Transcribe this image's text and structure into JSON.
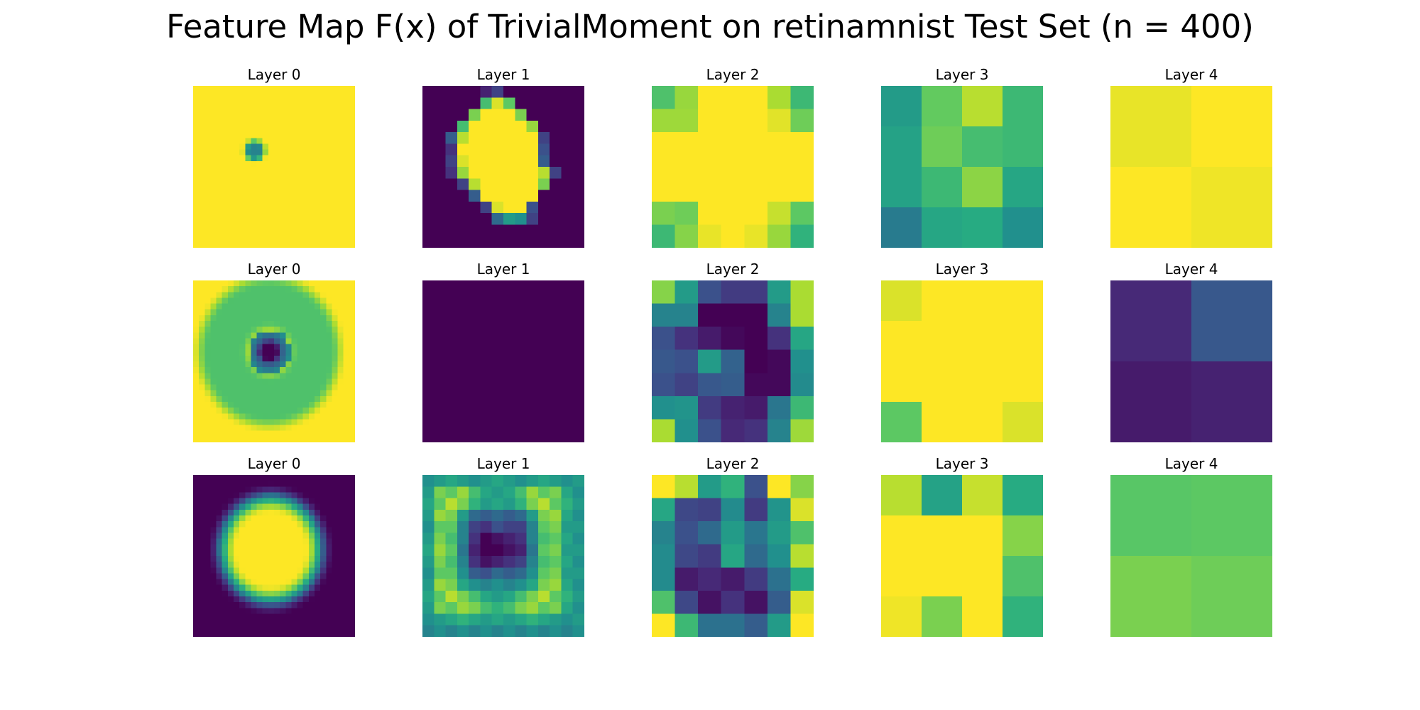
{
  "chart_data": {
    "type": "heatmap",
    "title": "Feature Map F(x) of TrivialMoment on retinamnist Test Set (n = 400)",
    "colormap": "viridis",
    "value_range": [
      0,
      1
    ],
    "rows": [
      {
        "panels": [
          {
            "title": "Layer 0",
            "kind": "spot",
            "size": 28,
            "background": 1.0,
            "center": [
              0.38,
              0.4
            ],
            "radius": 0.085,
            "min": 0.45
          },
          {
            "title": "Layer 1",
            "kind": "grid",
            "size": 14,
            "values": [
              [
                0,
                0,
                0,
                0,
                0,
                0.1,
                0.2,
                0,
                0,
                0,
                0,
                0,
                0,
                0
              ],
              [
                0,
                0,
                0,
                0,
                0,
                0.7,
                0.95,
                0.75,
                0,
                0,
                0,
                0,
                0,
                0
              ],
              [
                0,
                0,
                0,
                0,
                0.8,
                1,
                1,
                1,
                0.8,
                0,
                0,
                0,
                0,
                0
              ],
              [
                0,
                0,
                0,
                0.7,
                1,
                1,
                1,
                1,
                1,
                0.85,
                0,
                0,
                0,
                0
              ],
              [
                0,
                0,
                0.3,
                0.9,
                1,
                1,
                1,
                1,
                1,
                1,
                0.2,
                0,
                0,
                0
              ],
              [
                0,
                0,
                0.15,
                1,
                1,
                1,
                1,
                1,
                1,
                1,
                0.25,
                0,
                0,
                0
              ],
              [
                0,
                0,
                0.2,
                0.95,
                1,
                1,
                1,
                1,
                1,
                1,
                0.3,
                0,
                0,
                0
              ],
              [
                0,
                0,
                0.15,
                0.85,
                1,
                1,
                1,
                1,
                1,
                1,
                0.9,
                0.2,
                0,
                0
              ],
              [
                0,
                0,
                0,
                0.2,
                0.9,
                1,
                1,
                1,
                1,
                1,
                0.8,
                0,
                0,
                0
              ],
              [
                0,
                0,
                0,
                0,
                0.3,
                1,
                1,
                1,
                1,
                1,
                0,
                0,
                0,
                0
              ],
              [
                0,
                0,
                0,
                0,
                0,
                0.2,
                0.95,
                1,
                1,
                0.25,
                0,
                0,
                0,
                0
              ],
              [
                0,
                0,
                0,
                0,
                0,
                0,
                0.35,
                0.55,
                0.5,
                0.2,
                0,
                0,
                0,
                0
              ],
              [
                0,
                0,
                0,
                0,
                0,
                0,
                0,
                0,
                0,
                0,
                0,
                0,
                0,
                0
              ],
              [
                0,
                0,
                0,
                0,
                0,
                0,
                0,
                0,
                0,
                0,
                0,
                0,
                0,
                0
              ]
            ]
          },
          {
            "title": "Layer 2",
            "kind": "grid",
            "size": 7,
            "values": [
              [
                0.72,
                0.85,
                1,
                1,
                1,
                0.88,
                0.68
              ],
              [
                0.86,
                0.86,
                1,
                1,
                1,
                0.96,
                0.78
              ],
              [
                1,
                1,
                1,
                1,
                1,
                1,
                1
              ],
              [
                1,
                1,
                1,
                1,
                1,
                1,
                1
              ],
              [
                1,
                1,
                1,
                1,
                1,
                1,
                1
              ],
              [
                0.8,
                0.78,
                1,
                1,
                1,
                0.92,
                0.75
              ],
              [
                0.68,
                0.82,
                0.97,
                1,
                0.97,
                0.85,
                0.65
              ]
            ]
          },
          {
            "title": "Layer 3",
            "kind": "grid",
            "size": 4,
            "values": [
              [
                0.55,
                0.76,
                0.9,
                0.68
              ],
              [
                0.58,
                0.78,
                0.7,
                0.68
              ],
              [
                0.58,
                0.68,
                0.83,
                0.6
              ],
              [
                0.42,
                0.6,
                0.62,
                0.5
              ]
            ]
          },
          {
            "title": "Layer 4",
            "kind": "grid",
            "size": 2,
            "values": [
              [
                0.97,
                1.0
              ],
              [
                1.0,
                0.98
              ]
            ]
          }
        ]
      },
      {
        "panels": [
          {
            "title": "Layer 0",
            "kind": "ring",
            "size": 28,
            "background": 1.0,
            "center": [
              0.47,
              0.44
            ],
            "ring_radius": 0.28,
            "ring_width": 0.2,
            "ring_value": 0.72,
            "core_radius": 0.13
          },
          {
            "title": "Layer 1",
            "kind": "uniform",
            "size": 1,
            "value": 0.0
          },
          {
            "title": "Layer 2",
            "kind": "grid",
            "size": 7,
            "values": [
              [
                0.82,
                0.55,
                0.25,
                0.18,
                0.18,
                0.55,
                0.88
              ],
              [
                0.45,
                0.45,
                0,
                0,
                0,
                0.45,
                0.88
              ],
              [
                0.25,
                0.15,
                0.08,
                0.02,
                0,
                0.15,
                0.6
              ],
              [
                0.28,
                0.25,
                0.55,
                0.32,
                0,
                0.02,
                0.5
              ],
              [
                0.25,
                0.2,
                0.28,
                0.3,
                0.02,
                0.02,
                0.48
              ],
              [
                0.5,
                0.52,
                0.18,
                0.1,
                0.08,
                0.4,
                0.68
              ],
              [
                0.88,
                0.5,
                0.25,
                0.12,
                0.15,
                0.45,
                0.86
              ]
            ]
          },
          {
            "title": "Layer 3",
            "kind": "grid",
            "size": 4,
            "values": [
              [
                0.95,
                1,
                1,
                1
              ],
              [
                1,
                1,
                1,
                1
              ],
              [
                1,
                1,
                1,
                1
              ],
              [
                0.75,
                1,
                1,
                0.95
              ]
            ]
          },
          {
            "title": "Layer 4",
            "kind": "grid",
            "size": 2,
            "values": [
              [
                0.12,
                0.28
              ],
              [
                0.08,
                0.1
              ]
            ]
          }
        ]
      },
      {
        "panels": [
          {
            "title": "Layer 0",
            "kind": "blob",
            "size": 28,
            "background": 0.0,
            "center": [
              0.48,
              0.46
            ],
            "radius": 0.34,
            "edge": 0.12
          },
          {
            "title": "Layer 1",
            "kind": "grid",
            "size": 14,
            "values": [
              [
                0.5,
                0.55,
                0.6,
                0.55,
                0.5,
                0.55,
                0.6,
                0.55,
                0.5,
                0.55,
                0.6,
                0.55,
                0.5,
                0.55
              ],
              [
                0.55,
                0.8,
                0.75,
                0.85,
                0.7,
                0.6,
                0.55,
                0.6,
                0.7,
                0.85,
                0.75,
                0.8,
                0.6,
                0.5
              ],
              [
                0.6,
                0.75,
                0.9,
                0.8,
                0.65,
                0.55,
                0.6,
                0.55,
                0.65,
                0.8,
                0.9,
                0.75,
                0.65,
                0.55
              ],
              [
                0.55,
                0.85,
                0.8,
                0.55,
                0.35,
                0.3,
                0.35,
                0.3,
                0.35,
                0.55,
                0.8,
                0.85,
                0.6,
                0.5
              ],
              [
                0.5,
                0.75,
                0.75,
                0.45,
                0.2,
                0.15,
                0.25,
                0.2,
                0.2,
                0.45,
                0.75,
                0.8,
                0.55,
                0.55
              ],
              [
                0.55,
                0.8,
                0.7,
                0.45,
                0.15,
                0,
                0.05,
                0.1,
                0.15,
                0.45,
                0.7,
                0.75,
                0.6,
                0.5
              ],
              [
                0.6,
                0.85,
                0.75,
                0.4,
                0.1,
                0,
                0,
                0.05,
                0.1,
                0.4,
                0.75,
                0.8,
                0.55,
                0.55
              ],
              [
                0.55,
                0.8,
                0.7,
                0.45,
                0.15,
                0.05,
                0.1,
                0.15,
                0.2,
                0.45,
                0.7,
                0.75,
                0.6,
                0.5
              ],
              [
                0.5,
                0.75,
                0.75,
                0.5,
                0.3,
                0.25,
                0.35,
                0.3,
                0.35,
                0.5,
                0.75,
                0.8,
                0.55,
                0.55
              ],
              [
                0.55,
                0.85,
                0.8,
                0.6,
                0.5,
                0.45,
                0.5,
                0.45,
                0.5,
                0.6,
                0.8,
                0.85,
                0.6,
                0.5
              ],
              [
                0.6,
                0.75,
                0.9,
                0.8,
                0.7,
                0.6,
                0.55,
                0.6,
                0.7,
                0.8,
                0.9,
                0.75,
                0.65,
                0.55
              ],
              [
                0.55,
                0.8,
                0.75,
                0.85,
                0.8,
                0.7,
                0.65,
                0.7,
                0.8,
                0.85,
                0.75,
                0.8,
                0.6,
                0.5
              ],
              [
                0.5,
                0.55,
                0.6,
                0.65,
                0.6,
                0.55,
                0.6,
                0.55,
                0.6,
                0.65,
                0.6,
                0.55,
                0.5,
                0.55
              ],
              [
                0.45,
                0.5,
                0.45,
                0.5,
                0.45,
                0.5,
                0.45,
                0.5,
                0.45,
                0.5,
                0.45,
                0.5,
                0.45,
                0.5
              ]
            ]
          },
          {
            "title": "Layer 2",
            "kind": "grid",
            "size": 7,
            "values": [
              [
                1,
                0.9,
                0.55,
                0.65,
                0.25,
                1,
                0.82
              ],
              [
                0.6,
                0.22,
                0.2,
                0.48,
                0.18,
                0.52,
                0.95
              ],
              [
                0.45,
                0.25,
                0.35,
                0.55,
                0.4,
                0.55,
                0.72
              ],
              [
                0.48,
                0.22,
                0.18,
                0.6,
                0.35,
                0.5,
                0.9
              ],
              [
                0.48,
                0.08,
                0.12,
                0.08,
                0.18,
                0.38,
                0.62
              ],
              [
                0.72,
                0.22,
                0.05,
                0.15,
                0.05,
                0.3,
                0.95
              ],
              [
                1,
                0.68,
                0.38,
                0.38,
                0.3,
                0.55,
                1
              ]
            ]
          },
          {
            "title": "Layer 3",
            "kind": "grid",
            "size": 4,
            "values": [
              [
                0.9,
                0.58,
                0.92,
                0.62
              ],
              [
                1,
                1,
                1,
                0.82
              ],
              [
                1,
                1,
                1,
                0.72
              ],
              [
                0.98,
                0.8,
                1,
                0.65
              ]
            ]
          },
          {
            "title": "Layer 4",
            "kind": "grid",
            "size": 2,
            "values": [
              [
                0.74,
                0.75
              ],
              [
                0.8,
                0.78
              ]
            ]
          }
        ]
      }
    ]
  }
}
